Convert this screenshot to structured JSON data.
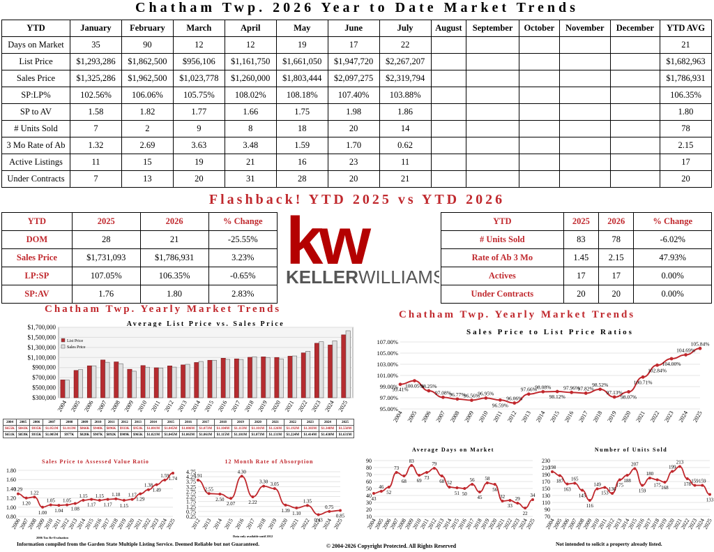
{
  "header": {
    "title": "Chatham Twp. 2026 Year to Date Market Trends"
  },
  "ytd_table": {
    "columns": [
      "YTD",
      "January",
      "February",
      "March",
      "April",
      "May",
      "June",
      "July",
      "August",
      "September",
      "October",
      "November",
      "December",
      "YTD AVG"
    ],
    "rows": [
      [
        "Days on Market",
        "35",
        "90",
        "12",
        "12",
        "19",
        "17",
        "22",
        "",
        "",
        "",
        "",
        "",
        "21"
      ],
      [
        "List Price",
        "$1,293,286",
        "$1,862,500",
        "$956,106",
        "$1,161,750",
        "$1,661,050",
        "$1,947,720",
        "$2,267,207",
        "",
        "",
        "",
        "",
        "",
        "$1,682,963"
      ],
      [
        "Sales Price",
        "$1,325,286",
        "$1,962,500",
        "$1,023,778",
        "$1,260,000",
        "$1,803,444",
        "$2,097,275",
        "$2,319,794",
        "",
        "",
        "",
        "",
        "",
        "$1,786,931"
      ],
      [
        "SP:LP%",
        "102.56%",
        "106.06%",
        "105.75%",
        "108.02%",
        "108.18%",
        "107.40%",
        "103.88%",
        "",
        "",
        "",
        "",
        "",
        "106.35%"
      ],
      [
        "SP to AV",
        "1.58",
        "1.82",
        "1.77",
        "1.66",
        "1.75",
        "1.98",
        "1.86",
        "",
        "",
        "",
        "",
        "",
        "1.80"
      ],
      [
        "# Units Sold",
        "7",
        "2",
        "9",
        "8",
        "18",
        "20",
        "14",
        "",
        "",
        "",
        "",
        "",
        "78"
      ],
      [
        "3 Mo Rate of Ab",
        "1.32",
        "2.69",
        "3.63",
        "3.48",
        "1.59",
        "1.70",
        "0.62",
        "",
        "",
        "",
        "",
        "",
        "2.15"
      ],
      [
        "Active Listings",
        "11",
        "15",
        "19",
        "21",
        "16",
        "23",
        "11",
        "",
        "",
        "",
        "",
        "",
        "17"
      ],
      [
        "Under Contracts",
        "7",
        "13",
        "20",
        "31",
        "28",
        "20",
        "21",
        "",
        "",
        "",
        "",
        "",
        "20"
      ]
    ]
  },
  "flashback": {
    "title": "Flashback!  YTD 2025 vs YTD 2026",
    "left": [
      [
        "YTD",
        "2025",
        "2026",
        "% Change"
      ],
      [
        "DOM",
        "28",
        "21",
        "-25.55%"
      ],
      [
        "Sales Price",
        "$1,731,093",
        "$1,786,931",
        "3.23%"
      ],
      [
        "LP:SP",
        "107.05%",
        "106.35%",
        "-0.65%"
      ],
      [
        "SP:AV",
        "1.76",
        "1.80",
        "2.83%"
      ]
    ],
    "right": [
      [
        "YTD",
        "2025",
        "2026",
        "% Change"
      ],
      [
        "# Units Sold",
        "83",
        "78",
        "-6.02%"
      ],
      [
        "Rate of Ab 3 Mo",
        "1.45",
        "2.15",
        "47.93%"
      ],
      [
        "Actives",
        "17",
        "17",
        "0.00%"
      ],
      [
        "Under Contracts",
        "20",
        "20",
        "0.00%"
      ]
    ]
  },
  "logo": {
    "mark": "kw",
    "wordmark_bold": "KELLER",
    "wordmark_light": "WILLIAMS.",
    "color": "#b40101"
  },
  "sections": {
    "left_title": "Chatham Twp. Yearly Market Trends",
    "right_title": "Chatham Twp. Yearly Market Trends"
  },
  "colors": {
    "accent": "#c0282d",
    "list_bar": "#b52b2f",
    "sales_bar": "#e0e0e0"
  },
  "chart_data": [
    {
      "type": "bar",
      "title": "Average List Price vs. Sales Price",
      "categories": [
        "2004",
        "2005",
        "2006",
        "2007",
        "2008",
        "2009",
        "2010",
        "2011",
        "2012",
        "2013",
        "2014",
        "2015",
        "2016",
        "2017",
        "2018",
        "2019",
        "2020",
        "2021",
        "2022",
        "2023",
        "2024",
        "2025"
      ],
      "series": [
        {
          "name": "List Price",
          "values": [
            655000,
            843000,
            935000,
            1051000,
            1013000,
            866000,
            940000,
            896000,
            933000,
            953000,
            1001000,
            1045000,
            1086000,
            1073000,
            1104000,
            1113000,
            1101000,
            1126000,
            1192000,
            1383000,
            1348000,
            1550000
          ]
        },
        {
          "name": "Sales Price",
          "values": [
            651000,
            859000,
            935000,
            1005000,
            977000,
            828000,
            907000,
            892000,
            909000,
            965000,
            1021000,
            1045000,
            1063000,
            1061000,
            1115000,
            1101000,
            1073000,
            1131000,
            1224000,
            1414000,
            1430000,
            1631000
          ]
        }
      ],
      "ylim": [
        300000,
        1700000
      ],
      "yticks": [
        "$300,000",
        "$500,000",
        "$700,000",
        "$900,000",
        "$1,100,000",
        "$1,300,000",
        "$1,500,000",
        "$1,700,000"
      ],
      "legend": "top-left",
      "table_rows": [
        [
          "2004",
          "2005",
          "2006",
          "2007",
          "2008",
          "2009",
          "2010",
          "2011",
          "2012",
          "2013",
          "2014",
          "2015",
          "2016",
          "2017",
          "2018",
          "2019",
          "2020",
          "2021",
          "2022",
          "2023",
          "2024",
          "2025"
        ],
        [
          "$655K",
          "$843K",
          "$935K",
          "$1.051M",
          "$1.013M",
          "$866K",
          "$940K",
          "$896K",
          "$933K",
          "$953K",
          "$1.001M",
          "$1.045M",
          "$1.086M",
          "$1.073M",
          "$1.104M",
          "$1.113M",
          "$1.101M",
          "$1.126M",
          "$1.192M",
          "$1.383M",
          "$1.348M",
          "$1.550M"
        ],
        [
          "$651K",
          "$859K",
          "$935K",
          "$1.005M",
          "$977K",
          "$828K",
          "$907K",
          "$892K",
          "$909K",
          "$965K",
          "$1.021M",
          "$1.045M",
          "$1.063M",
          "$1.061M",
          "$1.115M",
          "$1.101M",
          "$1.073M",
          "$1.131M",
          "$1.224M",
          "$1.414M",
          "$1.430M",
          "$1.631M"
        ]
      ],
      "row_labels": [
        "",
        "LP",
        "SP"
      ]
    },
    {
      "type": "line",
      "title": "Sales Price to List Price Ratios",
      "categories": [
        "2004",
        "2005",
        "2006",
        "2007",
        "2008",
        "2009",
        "2010",
        "2011",
        "2012",
        "2013",
        "2014",
        "2015",
        "2016",
        "2017",
        "2018",
        "2019",
        "2020",
        "2021",
        "2022",
        "2023",
        "2024",
        "2025"
      ],
      "values": [
        99.41,
        100.05,
        98.25,
        97.08,
        96.77,
        96.56,
        96.95,
        96.59,
        96.06,
        97.66,
        98.08,
        98.12,
        97.96,
        97.82,
        98.52,
        97.13,
        98.07,
        100.71,
        102.84,
        104.0,
        104.69,
        105.84
      ],
      "labels": [
        "99.41%",
        "100.05%",
        "98.25%",
        "97.08%",
        "96.77%",
        "96.56%",
        "96.95%",
        "96.59%",
        "96.06%",
        "97.66%",
        "98.08%",
        "98.12%",
        "97.96%",
        "97.82%",
        "98.52%",
        "97.13%",
        "98.07%",
        "100.71%",
        "102.84%",
        "104.00%",
        "104.69%",
        "105.84%"
      ],
      "ylim": [
        95,
        107
      ],
      "yticks": [
        "95.00%",
        "97.00%",
        "99.00%",
        "101.00%",
        "103.00%",
        "105.00%",
        "107.00%"
      ]
    },
    {
      "type": "line",
      "title": "Sales Price to Assessed Value Ratio",
      "categories": [
        "2006",
        "2007",
        "2008",
        "2009",
        "2010",
        "2011",
        "2012",
        "2013",
        "2014",
        "2015",
        "2016",
        "2017",
        "2018",
        "2019",
        "2020",
        "2021",
        "2022",
        "2023",
        "2024",
        "2025"
      ],
      "values": [
        1.29,
        1.2,
        1.22,
        1.0,
        1.05,
        1.04,
        1.05,
        1.08,
        1.15,
        1.17,
        1.15,
        1.17,
        1.18,
        1.15,
        1.17,
        1.29,
        1.38,
        1.49,
        1.59,
        1.74
      ],
      "labels": [
        "1.29",
        "1.20",
        "1.22",
        "1.00",
        "1.05",
        "1.04",
        "1.05",
        "1.08",
        "1.15",
        "1.17",
        "1.15",
        "1.17",
        "1.18",
        "1.15",
        "1.17",
        "1.29",
        "1.38",
        "1.49",
        "1.59",
        "1.74"
      ],
      "ylim": [
        0.8,
        1.8
      ],
      "yticks": [
        "0.80",
        "1.00",
        "1.20",
        "1.40",
        "1.60",
        "1.80"
      ],
      "note": "2006 Tax Re-Evaluation"
    },
    {
      "type": "line",
      "title": "12 Month Rate of Absorption",
      "categories": [
        "2012",
        "2013",
        "2014",
        "2015",
        "2016",
        "2017",
        "2018",
        "2019",
        "2020",
        "2021",
        "2022",
        "2023",
        "2024",
        "2025"
      ],
      "values": [
        3.91,
        2.55,
        2.5,
        2.07,
        4.3,
        2.22,
        3.3,
        3.05,
        1.39,
        1.1,
        1.35,
        0.43,
        0.75,
        0.85
      ],
      "labels": [
        "3.91",
        "2.55",
        "2.50",
        "2.07",
        "4.30",
        "2.22",
        "3.30",
        "3.05",
        "1.39",
        "1.10",
        "1.35",
        "0.43",
        "0.75",
        "0.85"
      ],
      "ylim": [
        0.25,
        4.75
      ],
      "yticks": [
        "0.25",
        "0.75",
        "1.25",
        "1.75",
        "2.25",
        "2.75",
        "3.25",
        "3.75",
        "4.25",
        "4.75"
      ],
      "note": "Data only available until 2012"
    },
    {
      "type": "line",
      "title": "Average Days on Market",
      "categories": [
        "2004",
        "2005",
        "2006",
        "2007",
        "2008",
        "2009",
        "2010",
        "2011",
        "2012",
        "2013",
        "2014",
        "2015",
        "2016",
        "2017",
        "2018",
        "2019",
        "2020",
        "2021",
        "2022",
        "2023",
        "2024",
        "2025"
      ],
      "values": [
        43,
        46,
        52,
        73,
        68,
        83,
        69,
        73,
        79,
        68,
        52,
        51,
        50,
        56,
        45,
        58,
        56,
        32,
        33,
        29,
        22,
        34
      ],
      "labels": [
        "43",
        "46",
        "52",
        "73",
        "68",
        "83",
        "69",
        "73",
        "79",
        "68",
        "52",
        "51",
        "50",
        "56",
        "45",
        "58",
        "56",
        "32",
        "33",
        "29",
        "22",
        "34"
      ],
      "ylim": [
        10,
        90
      ],
      "yticks": [
        "10",
        "20",
        "30",
        "40",
        "50",
        "60",
        "70",
        "80",
        "90"
      ]
    },
    {
      "type": "line",
      "title": "Number of Units Sold",
      "categories": [
        "2004",
        "2005",
        "2006",
        "2007",
        "2008",
        "2009",
        "2010",
        "2011",
        "2012",
        "2013",
        "2014",
        "2015",
        "2016",
        "2017",
        "2018",
        "2019",
        "2020",
        "2021",
        "2022",
        "2023",
        "2024",
        "2025"
      ],
      "values": [
        198,
        187,
        163,
        165,
        145,
        116,
        149,
        153,
        136,
        175,
        188,
        207,
        159,
        180,
        175,
        168,
        199,
        213,
        178,
        159,
        159,
        133
      ],
      "labels": [
        "198",
        "187",
        "163",
        "165",
        "145",
        "116",
        "149",
        "153",
        "136",
        "175",
        "188",
        "207",
        "159",
        "180",
        "175",
        "168",
        "199",
        "213",
        "178",
        "159",
        "159",
        "133"
      ],
      "ylim": [
        70,
        230
      ],
      "yticks": [
        "70",
        "90",
        "110",
        "130",
        "150",
        "170",
        "190",
        "210",
        "230"
      ]
    }
  ],
  "footer": {
    "left": "Information compiled from the Garden State Multiple Listing Service.  Deemed Reliable but not Guaranteed.",
    "center": "© 2004-2026 Copyright Protected.  All Rights Reserved",
    "right": "Not intended to solicit a property already listed."
  }
}
